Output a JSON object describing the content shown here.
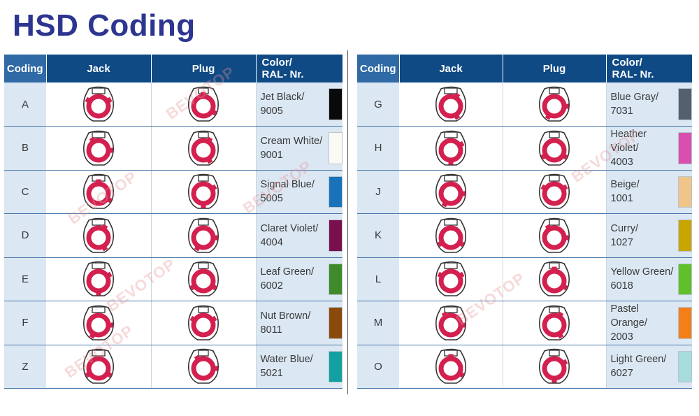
{
  "title": "HSD Coding",
  "headers": {
    "coding": "Coding",
    "jack": "Jack",
    "plug": "Plug",
    "color_line1": "Color/",
    "color_line2": "RAL- Nr."
  },
  "watermark": "BEVOTOP",
  "tables": [
    {
      "rows": [
        {
          "code": "A",
          "color_name": "Jet Black/",
          "ral": "9005",
          "swatch": "#0a0a0a"
        },
        {
          "code": "B",
          "color_name": "Cream White/",
          "ral": "9001",
          "swatch": "#fbf9f3"
        },
        {
          "code": "C",
          "color_name": "Signal Blue/",
          "ral": "5005",
          "swatch": "#1a72b8"
        },
        {
          "code": "D",
          "color_name": "Claret Violet/",
          "ral": "4004",
          "swatch": "#7a0f4e"
        },
        {
          "code": "E",
          "color_name": "Leaf Green/",
          "ral": "6002",
          "swatch": "#3f8a2a"
        },
        {
          "code": "F",
          "color_name": "Nut Brown/",
          "ral": "8011",
          "swatch": "#8a4a0a"
        },
        {
          "code": "Z",
          "color_name": "Water Blue/",
          "ral": "5021",
          "swatch": "#12a0a0"
        }
      ]
    },
    {
      "rows": [
        {
          "code": "G",
          "color_name": "Blue Gray/",
          "ral": "7031",
          "swatch": "#55606e"
        },
        {
          "code": "H",
          "color_name": "Heather Violet/",
          "ral": "4003",
          "swatch": "#d94fb0"
        },
        {
          "code": "J",
          "color_name": "Beige/",
          "ral": "1001",
          "swatch": "#f0c58a"
        },
        {
          "code": "K",
          "color_name": "Curry/",
          "ral": "1027",
          "swatch": "#c9a500"
        },
        {
          "code": "L",
          "color_name": "Yellow Green/",
          "ral": "6018",
          "swatch": "#5fc02a"
        },
        {
          "code": "M",
          "color_name": "Pastel Orange/",
          "ral": "2003",
          "swatch": "#f57f17"
        },
        {
          "code": "O",
          "color_name": "Light Green/",
          "ral": "6027",
          "swatch": "#a6dcdc"
        }
      ]
    }
  ],
  "colors": {
    "title": "#2d3591",
    "header_bg": "#0f4a85",
    "cell_bg": "#dbe7f3",
    "connector_ring": "#d3204f"
  }
}
